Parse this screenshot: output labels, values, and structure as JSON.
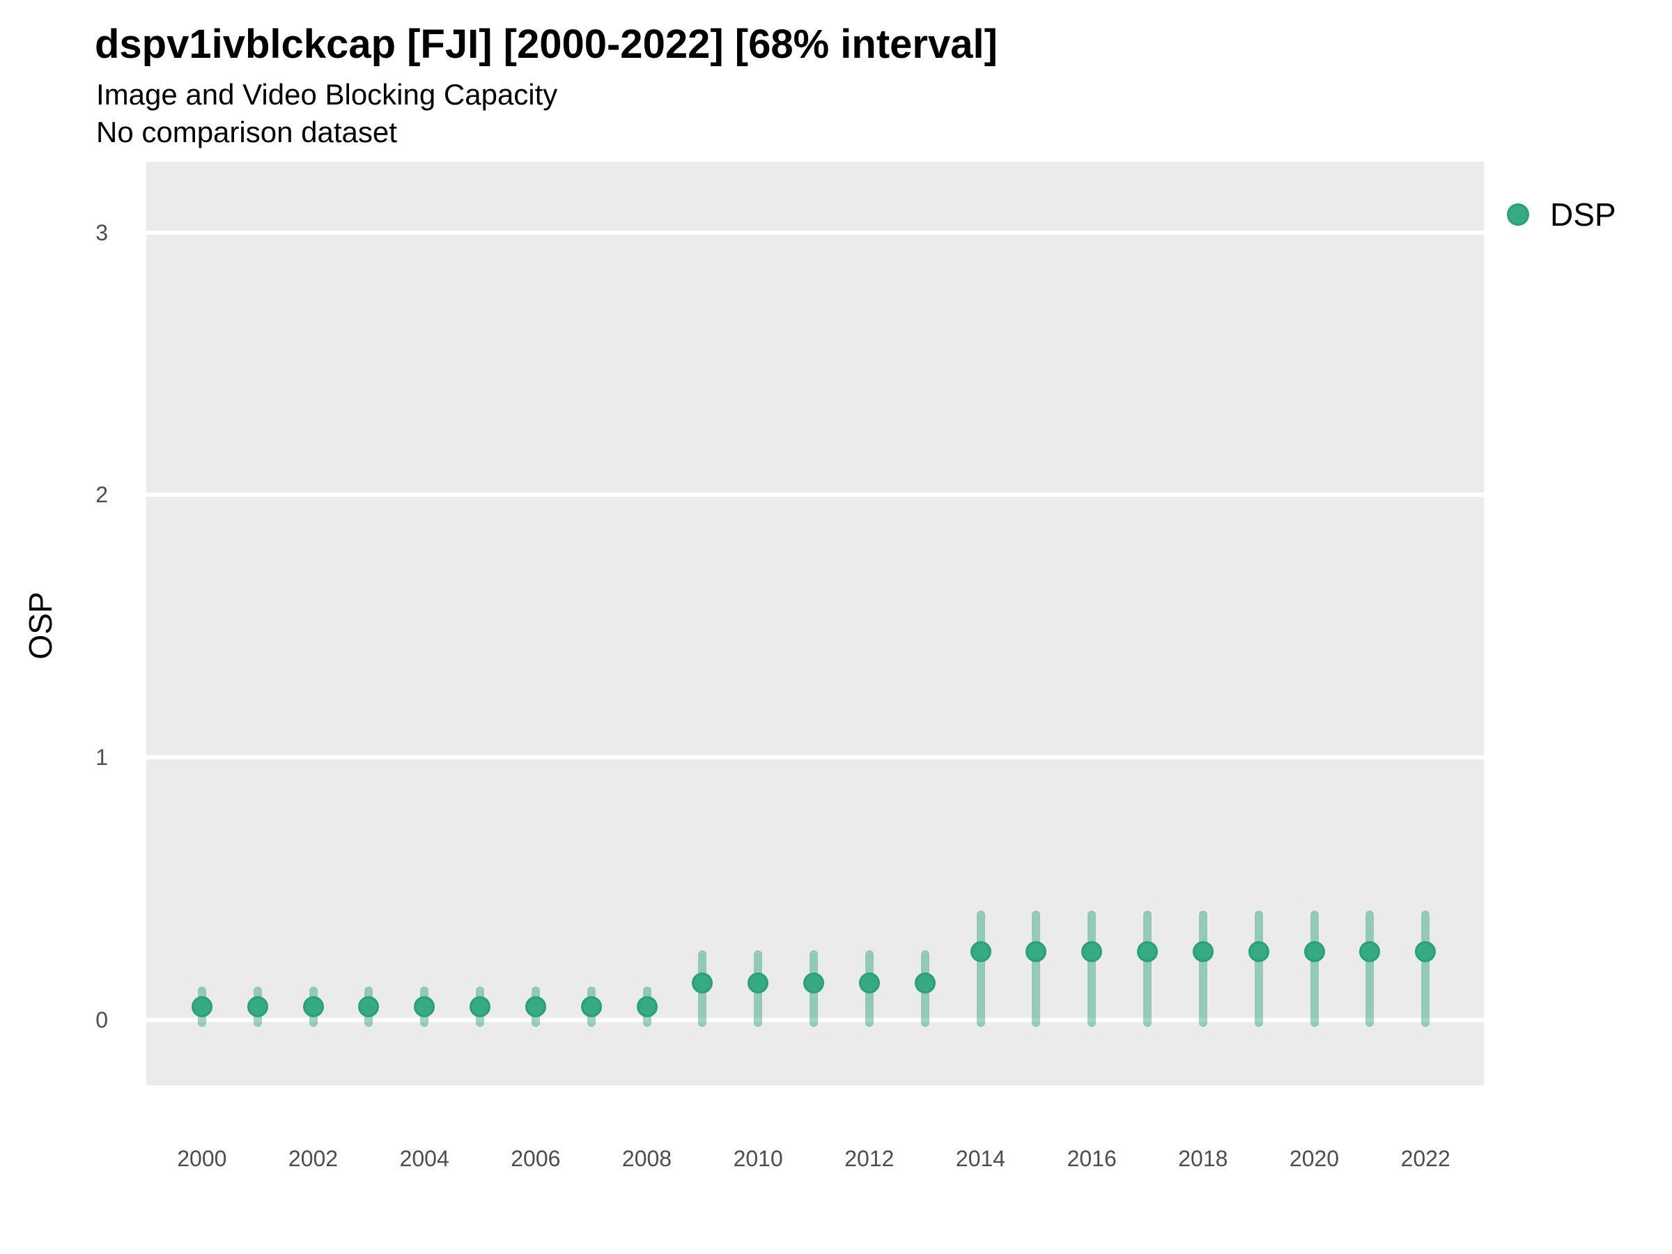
{
  "header": {
    "title": "dspv1ivblckcap [FJI] [2000-2022] [68% interval]",
    "subtitle": "Image and Video Blocking Capacity",
    "comparison_note": "No comparison dataset"
  },
  "y_axis_title": "OSP",
  "legend": {
    "label": "DSP",
    "marker_color": "#36ab82"
  },
  "colors": {
    "panel_background": "#EBEBEB",
    "gridline": "#FFFFFF",
    "point_fill": "#36ab82",
    "point_stroke": "#2aa076",
    "interval_bar": "rgba(42,160,118,0.45)",
    "tick_text": "#4d4d4d",
    "title_text": "#000000"
  },
  "chart_data": {
    "type": "scatter",
    "title": "dspv1ivblckcap [FJI] [2000-2022] [68% interval]",
    "subtitle": "Image and Video Blocking Capacity",
    "note": "No comparison dataset",
    "series_name": "DSP",
    "interval_level": "68%",
    "xlabel": "",
    "ylabel": "OSP",
    "grid": "horizontal-major-only",
    "legend_position": "right-top",
    "x": [
      2000,
      2001,
      2002,
      2003,
      2004,
      2005,
      2006,
      2007,
      2008,
      2009,
      2010,
      2011,
      2012,
      2013,
      2014,
      2015,
      2016,
      2017,
      2018,
      2019,
      2020,
      2021,
      2022
    ],
    "values": [
      0.05,
      0.05,
      0.05,
      0.05,
      0.05,
      0.05,
      0.05,
      0.05,
      0.05,
      0.14,
      0.14,
      0.14,
      0.14,
      0.14,
      0.26,
      0.26,
      0.26,
      0.26,
      0.26,
      0.26,
      0.26,
      0.26,
      0.26
    ],
    "interval_low": [
      -0.01,
      -0.01,
      -0.01,
      -0.01,
      -0.01,
      -0.01,
      -0.01,
      -0.01,
      -0.01,
      -0.01,
      -0.01,
      -0.01,
      -0.01,
      -0.01,
      -0.01,
      -0.01,
      -0.01,
      -0.01,
      -0.01,
      -0.01,
      -0.01,
      -0.01,
      -0.01
    ],
    "interval_high": [
      0.11,
      0.11,
      0.11,
      0.11,
      0.11,
      0.11,
      0.11,
      0.11,
      0.11,
      0.25,
      0.25,
      0.25,
      0.25,
      0.25,
      0.4,
      0.4,
      0.4,
      0.4,
      0.4,
      0.4,
      0.4,
      0.4,
      0.4
    ],
    "x_ticks": [
      2000,
      2002,
      2004,
      2006,
      2008,
      2010,
      2012,
      2014,
      2016,
      2018,
      2020,
      2022
    ],
    "y_ticks": [
      0,
      1,
      2,
      3
    ],
    "xlim": [
      1999.0,
      2023.05
    ],
    "ylim": [
      -0.25,
      3.27
    ]
  }
}
